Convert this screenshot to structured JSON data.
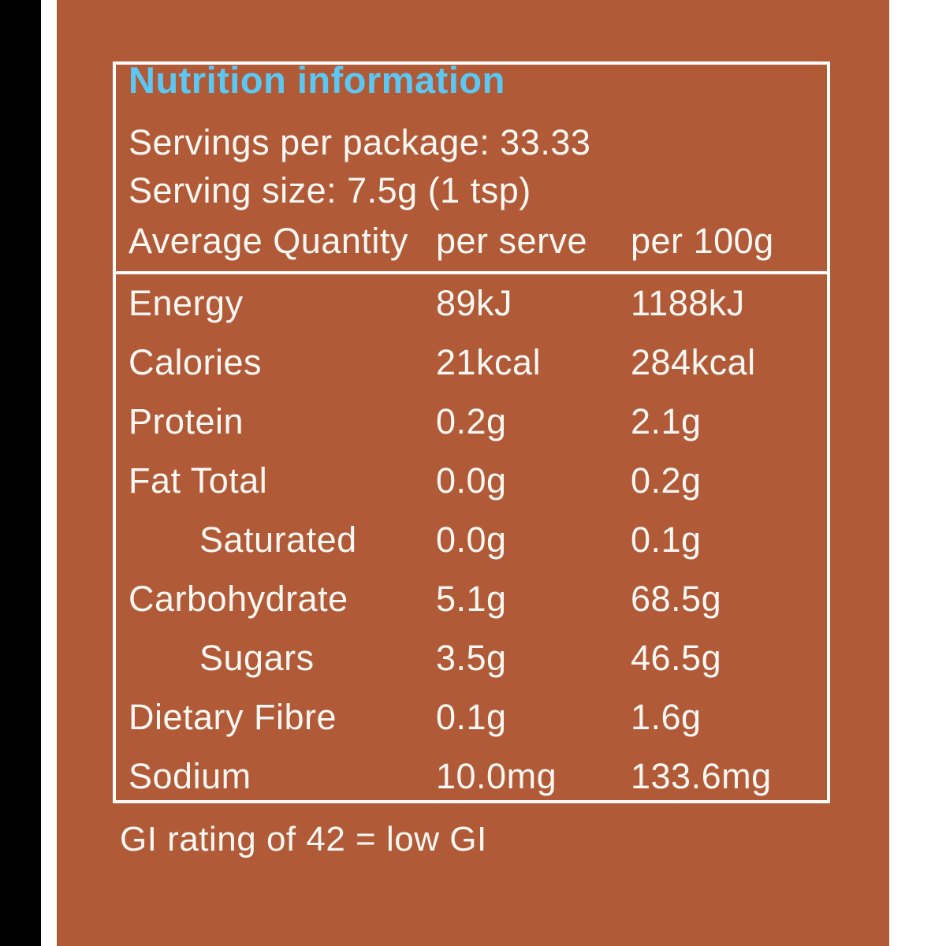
{
  "label": {
    "title": "Nutrition information",
    "servings_line": "Servings per package: 33.33",
    "serving_size_line": "Serving size: 7.5g (1 tsp)",
    "gi_line": "GI rating of 42 = low GI"
  },
  "table": {
    "header": {
      "col1": "Average Quantity",
      "col2": "per serve",
      "col3": "per 100g"
    },
    "rows": [
      {
        "label": "Energy",
        "per_serve": "89kJ",
        "per_100g": "1188kJ"
      },
      {
        "label": "Calories",
        "per_serve": "21kcal",
        "per_100g": "284kcal"
      },
      {
        "label": "Protein",
        "per_serve": "0.2g",
        "per_100g": "2.1g"
      },
      {
        "label": "Fat Total",
        "per_serve": "0.0g",
        "per_100g": "0.2g"
      },
      {
        "label": "Saturated",
        "per_serve": "0.0g",
        "per_100g": "0.1g"
      },
      {
        "label": "Carbohydrate",
        "per_serve": "5.1g",
        "per_100g": "68.5g"
      },
      {
        "label": "Sugars",
        "per_serve": "3.5g",
        "per_100g": "46.5g"
      },
      {
        "label": "Dietary Fibre",
        "per_serve": "0.1g",
        "per_100g": "1.6g"
      },
      {
        "label": "Sodium",
        "per_serve": "10.0mg",
        "per_100g": "133.6mg"
      }
    ]
  },
  "colors": {
    "panel_background": "#b15a38",
    "heading_blue": "#5bc8f3",
    "text_white": "#fbf7f2",
    "border_white": "#fffdfa",
    "left_strip_black": "#000000",
    "page_edge_white": "#ffffff"
  }
}
